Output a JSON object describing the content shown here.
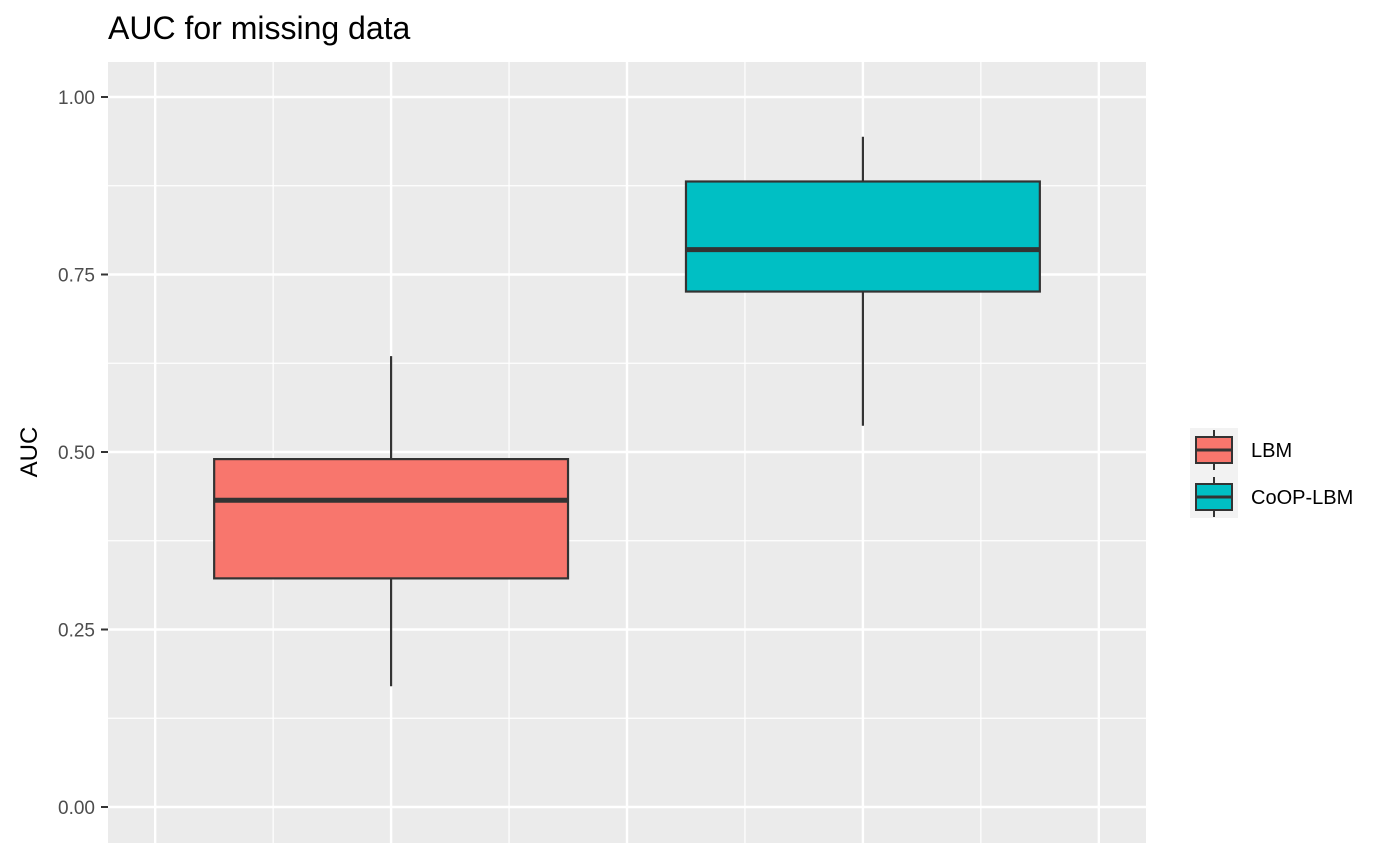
{
  "chart_data": {
    "type": "boxplot",
    "title": "AUC for missing data",
    "xlabel": "",
    "ylabel": "AUC",
    "ylim": [
      -0.04,
      1.05
    ],
    "y_ticks": [
      "0.00",
      "0.25",
      "0.50",
      "0.75",
      "1.00"
    ],
    "grid": true,
    "legend_position": "right",
    "series": [
      {
        "name": "LBM",
        "color": "#F8766D",
        "whisker_low": 0.17,
        "q1": 0.322,
        "median": 0.432,
        "q3": 0.49,
        "whisker_high": 0.635
      },
      {
        "name": "CoOP-LBM",
        "color": "#00BFC4",
        "whisker_low": 0.537,
        "q1": 0.726,
        "median": 0.785,
        "q3": 0.881,
        "whisker_high": 0.944
      }
    ]
  }
}
